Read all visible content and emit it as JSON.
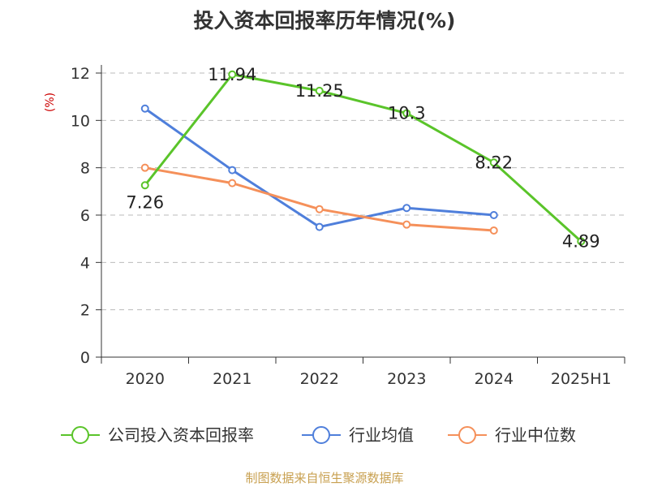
{
  "title": "投入资本回报率历年情况(%)",
  "source": "制图数据来自恒生聚源数据库",
  "chart_data": {
    "type": "line",
    "categories": [
      "2020",
      "2021",
      "2022",
      "2023",
      "2024",
      "2025H1"
    ],
    "ylabel": "(%)",
    "ylim": [
      0,
      12
    ],
    "yticks": [
      0,
      2,
      4,
      6,
      8,
      10,
      12
    ],
    "grid": "horizontal-dashed",
    "legend_position": "bottom",
    "series": [
      {
        "name": "公司投入资本回报率",
        "color": "#5ac42a",
        "values": [
          7.26,
          11.94,
          11.25,
          10.3,
          8.22,
          4.89
        ],
        "labels": [
          "7.26",
          "11.94",
          "11.25",
          "10.3",
          "8.22",
          "4.89"
        ]
      },
      {
        "name": "行业均值",
        "color": "#4f7fdb",
        "values": [
          10.5,
          7.9,
          5.5,
          6.3,
          6.0,
          null
        ]
      },
      {
        "name": "行业中位数",
        "color": "#f5905a",
        "values": [
          8.0,
          7.35,
          6.25,
          5.6,
          5.35,
          null
        ]
      }
    ]
  }
}
